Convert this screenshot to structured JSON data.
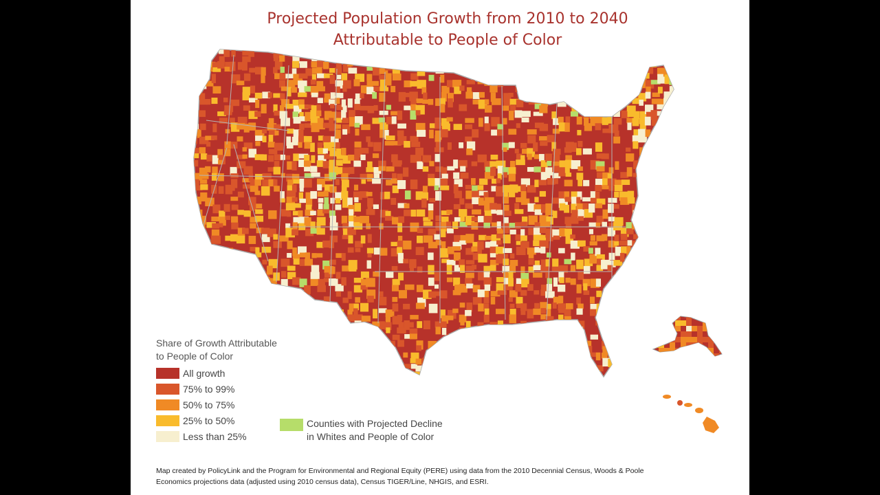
{
  "title": {
    "line1": "Projected Population Growth from 2010 to 2040",
    "line2": "Attributable to People of Color"
  },
  "legend": {
    "title_line1": "Share of Growth Attributable",
    "title_line2": "to People of Color",
    "items": [
      {
        "label": "All growth",
        "color": "#b7322a"
      },
      {
        "label": "75% to 99%",
        "color": "#d9562b"
      },
      {
        "label": "50% to 75%",
        "color": "#f08a25"
      },
      {
        "label": "25% to 50%",
        "color": "#f9bb2c"
      },
      {
        "label": "Less than 25%",
        "color": "#f7efcf"
      }
    ],
    "decline": {
      "label_line1": "Counties with Projected Decline",
      "label_line2": "in Whites and People of Color",
      "color": "#b6dd6a"
    }
  },
  "source": {
    "line1": "Map created by PolicyLink and the Program for Environmental and Regional Equity (PERE) using data from the 2010 Decennial Census, Woods & Poole",
    "line2": "Economics projections data (adjusted using 2010 census data), Census TIGER/Line, NHGIS, and ESRI."
  },
  "colors": {
    "title": "#a8322d",
    "state_border": "#b0b0b0",
    "background": "#ffffff",
    "frame": "#000000"
  }
}
